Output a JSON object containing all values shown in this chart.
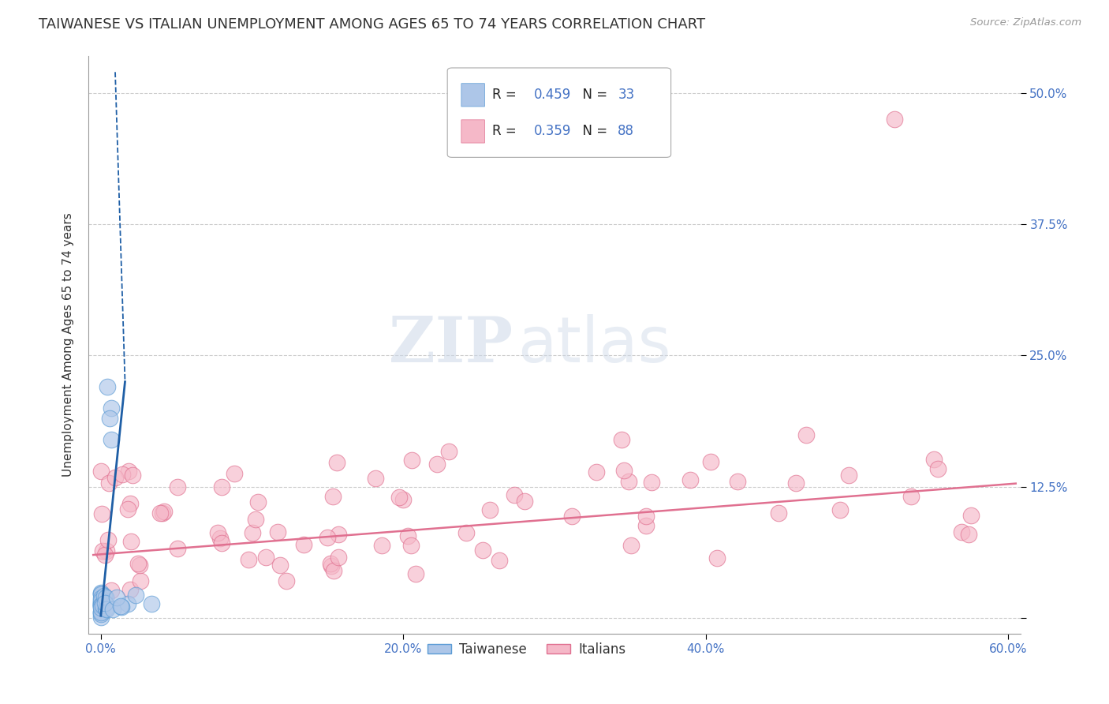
{
  "title": "TAIWANESE VS ITALIAN UNEMPLOYMENT AMONG AGES 65 TO 74 YEARS CORRELATION CHART",
  "source_text": "Source: ZipAtlas.com",
  "ylabel": "Unemployment Among Ages 65 to 74 years",
  "xlim": [
    0.0,
    0.6
  ],
  "ylim": [
    0.0,
    0.5
  ],
  "xtick_positions": [
    0.0,
    0.2,
    0.4,
    0.6
  ],
  "xtick_labels": [
    "0.0%",
    "20.0%",
    "40.0%",
    "60.0%"
  ],
  "ytick_positions": [
    0.0,
    0.125,
    0.25,
    0.375,
    0.5
  ],
  "ytick_labels": [
    "",
    "12.5%",
    "25.0%",
    "37.5%",
    "50.0%"
  ],
  "grid_color": "#cccccc",
  "bg_color": "#ffffff",
  "watermark_zip": "ZIP",
  "watermark_atlas": "atlas",
  "taiwanese_scatter_color": "#adc6e8",
  "taiwanese_scatter_edgecolor": "#5b9bd5",
  "italian_scatter_color": "#f5b8c8",
  "italian_scatter_edgecolor": "#e07090",
  "taiwanese_line_color": "#1f5fa6",
  "italian_line_color": "#e07090",
  "title_fontsize": 13,
  "axis_label_fontsize": 11,
  "tick_label_fontsize": 11,
  "tick_label_color": "#4472c4",
  "legend_label_color": "#4472c4",
  "legend_R_color": "#222222",
  "tw_R": "0.459",
  "tw_N": "33",
  "it_R": "0.359",
  "it_N": "88",
  "bottom_legend": [
    "Taiwanese",
    "Italians"
  ]
}
